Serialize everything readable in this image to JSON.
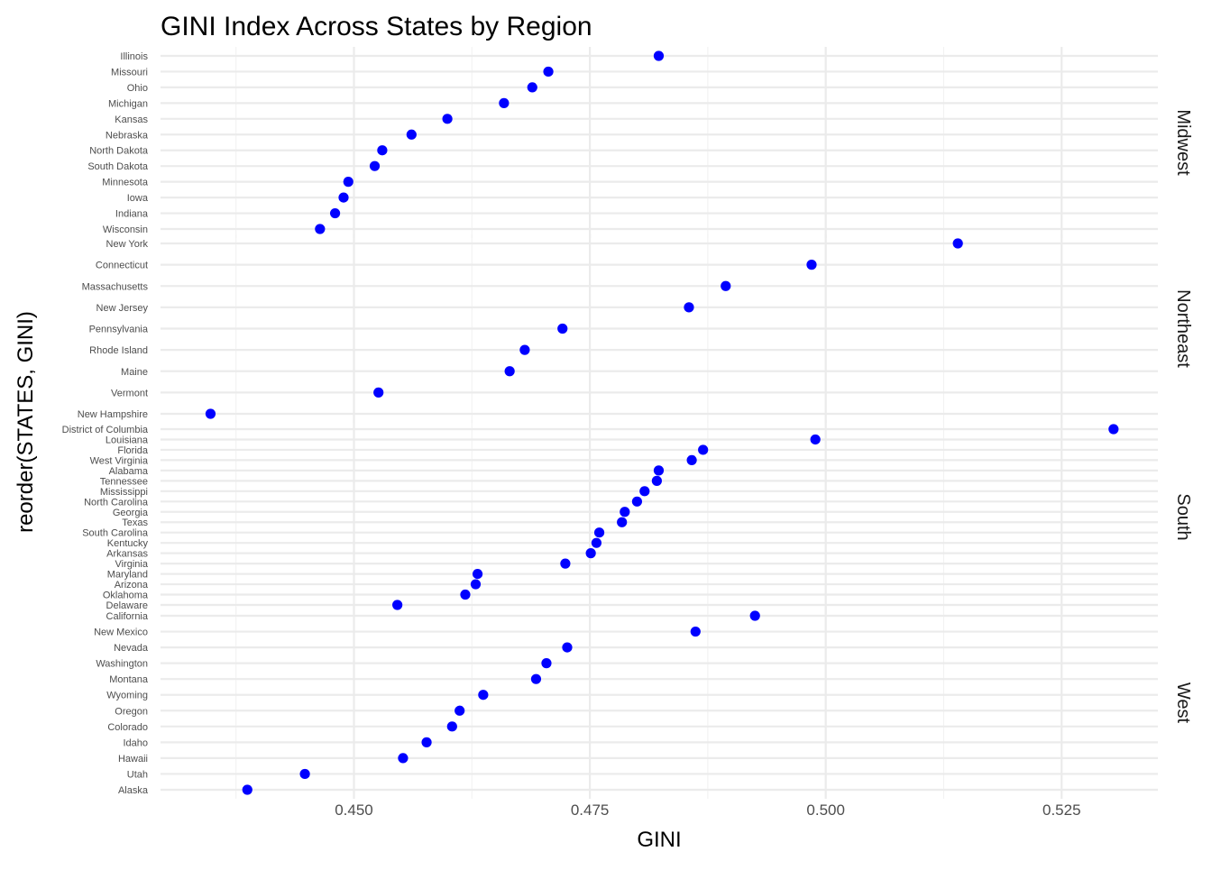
{
  "chart_data": {
    "type": "scatter",
    "title": "GINI Index Across States by Region",
    "xlabel": "GINI",
    "ylabel": "reorder(STATES, GINI)",
    "xlim": [
      0.4295,
      0.5352
    ],
    "xticks": [
      0.45,
      0.475,
      0.5,
      0.525
    ],
    "xtick_labels": [
      "0.450",
      "0.475",
      "0.500",
      "0.525"
    ],
    "grid": true,
    "legend": "none",
    "point_color": "#0000ff",
    "facets": [
      {
        "name": "Midwest",
        "states": [
          {
            "state": "Illinois",
            "gini": 0.4823
          },
          {
            "state": "Missouri",
            "gini": 0.4706
          },
          {
            "state": "Ohio",
            "gini": 0.4689
          },
          {
            "state": "Michigan",
            "gini": 0.4659
          },
          {
            "state": "Kansas",
            "gini": 0.4599
          },
          {
            "state": "Nebraska",
            "gini": 0.4561
          },
          {
            "state": "North Dakota",
            "gini": 0.453
          },
          {
            "state": "South Dakota",
            "gini": 0.4522
          },
          {
            "state": "Minnesota",
            "gini": 0.4494
          },
          {
            "state": "Iowa",
            "gini": 0.4489
          },
          {
            "state": "Indiana",
            "gini": 0.448
          },
          {
            "state": "Wisconsin",
            "gini": 0.4464
          }
        ]
      },
      {
        "name": "Northeast",
        "states": [
          {
            "state": "New York",
            "gini": 0.514
          },
          {
            "state": "Connecticut",
            "gini": 0.4985
          },
          {
            "state": "Massachusetts",
            "gini": 0.4894
          },
          {
            "state": "New Jersey",
            "gini": 0.4855
          },
          {
            "state": "Pennsylvania",
            "gini": 0.4721
          },
          {
            "state": "Rhode Island",
            "gini": 0.4681
          },
          {
            "state": "Maine",
            "gini": 0.4665
          },
          {
            "state": "Vermont",
            "gini": 0.4526
          },
          {
            "state": "New Hampshire",
            "gini": 0.4348
          }
        ]
      },
      {
        "name": "South",
        "states": [
          {
            "state": "District of Columbia",
            "gini": 0.5305
          },
          {
            "state": "Louisiana",
            "gini": 0.4989
          },
          {
            "state": "Florida",
            "gini": 0.487
          },
          {
            "state": "West Virginia",
            "gini": 0.4858
          },
          {
            "state": "Alabama",
            "gini": 0.4823
          },
          {
            "state": "Tennessee",
            "gini": 0.4821
          },
          {
            "state": "Mississippi",
            "gini": 0.4808
          },
          {
            "state": "North Carolina",
            "gini": 0.48
          },
          {
            "state": "Georgia",
            "gini": 0.4787
          },
          {
            "state": "Texas",
            "gini": 0.4784
          },
          {
            "state": "South Carolina",
            "gini": 0.476
          },
          {
            "state": "Kentucky",
            "gini": 0.4757
          },
          {
            "state": "Arkansas",
            "gini": 0.4751
          },
          {
            "state": "Virginia",
            "gini": 0.4724
          },
          {
            "state": "Maryland",
            "gini": 0.4631
          },
          {
            "state": "Arizona",
            "gini": 0.4629
          },
          {
            "state": "Oklahoma",
            "gini": 0.4618
          },
          {
            "state": "Delaware",
            "gini": 0.4546
          }
        ]
      },
      {
        "name": "West",
        "states": [
          {
            "state": "California",
            "gini": 0.4925
          },
          {
            "state": "New Mexico",
            "gini": 0.4862
          },
          {
            "state": "Nevada",
            "gini": 0.4726
          },
          {
            "state": "Washington",
            "gini": 0.4704
          },
          {
            "state": "Montana",
            "gini": 0.4693
          },
          {
            "state": "Wyoming",
            "gini": 0.4637
          },
          {
            "state": "Oregon",
            "gini": 0.4612
          },
          {
            "state": "Colorado",
            "gini": 0.4604
          },
          {
            "state": "Idaho",
            "gini": 0.4577
          },
          {
            "state": "Hawaii",
            "gini": 0.4552
          },
          {
            "state": "Utah",
            "gini": 0.4448
          },
          {
            "state": "Alaska",
            "gini": 0.4387
          }
        ]
      }
    ]
  }
}
